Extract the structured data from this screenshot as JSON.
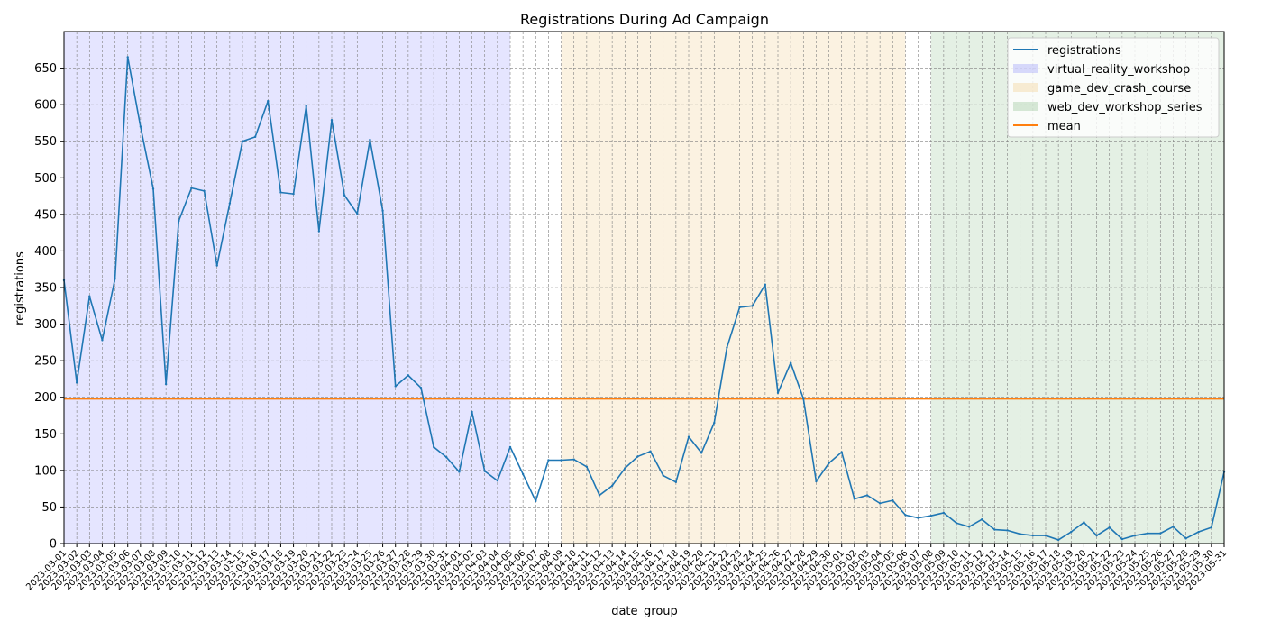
{
  "chart_data": {
    "type": "line",
    "title": "Registrations During Ad Campaign",
    "xlabel": "date_group",
    "ylabel": "registrations",
    "ylim": [
      0,
      700
    ],
    "yticks": [
      0,
      50,
      100,
      150,
      200,
      250,
      300,
      350,
      400,
      450,
      500,
      550,
      600,
      650
    ],
    "grid": true,
    "legend_position": "top-right",
    "x": [
      "2023-03-01",
      "2023-03-02",
      "2023-03-03",
      "2023-03-04",
      "2023-03-05",
      "2023-03-06",
      "2023-03-07",
      "2023-03-08",
      "2023-03-09",
      "2023-03-10",
      "2023-03-11",
      "2023-03-12",
      "2023-03-13",
      "2023-03-14",
      "2023-03-15",
      "2023-03-16",
      "2023-03-17",
      "2023-03-18",
      "2023-03-19",
      "2023-03-20",
      "2023-03-21",
      "2023-03-22",
      "2023-03-23",
      "2023-03-24",
      "2023-03-25",
      "2023-03-26",
      "2023-03-27",
      "2023-03-28",
      "2023-03-29",
      "2023-03-30",
      "2023-03-31",
      "2023-04-01",
      "2023-04-02",
      "2023-04-03",
      "2023-04-04",
      "2023-04-05",
      "2023-04-06",
      "2023-04-07",
      "2023-04-08",
      "2023-04-09",
      "2023-04-10",
      "2023-04-11",
      "2023-04-12",
      "2023-04-13",
      "2023-04-14",
      "2023-04-15",
      "2023-04-16",
      "2023-04-17",
      "2023-04-18",
      "2023-04-19",
      "2023-04-20",
      "2023-04-21",
      "2023-04-22",
      "2023-04-23",
      "2023-04-24",
      "2023-04-25",
      "2023-04-26",
      "2023-04-27",
      "2023-04-28",
      "2023-04-29",
      "2023-04-30",
      "2023-05-01",
      "2023-05-02",
      "2023-05-03",
      "2023-05-04",
      "2023-05-05",
      "2023-05-06",
      "2023-05-07",
      "2023-05-08",
      "2023-05-09",
      "2023-05-10",
      "2023-05-11",
      "2023-05-12",
      "2023-05-13",
      "2023-05-14",
      "2023-05-15",
      "2023-05-16",
      "2023-05-17",
      "2023-05-18",
      "2023-05-19",
      "2023-05-20",
      "2023-05-21",
      "2023-05-22",
      "2023-05-23",
      "2023-05-24",
      "2023-05-25",
      "2023-05-26",
      "2023-05-27",
      "2023-05-28",
      "2023-05-29",
      "2023-05-30",
      "2023-05-31"
    ],
    "series": [
      {
        "name": "registrations",
        "color": "#1f77b4",
        "values": [
          360,
          220,
          338,
          278,
          362,
          665,
          570,
          485,
          218,
          441,
          486,
          482,
          380,
          465,
          550,
          556,
          605,
          480,
          478,
          598,
          427,
          579,
          476,
          451,
          552,
          455,
          215,
          230,
          213,
          132,
          118,
          98,
          180,
          99,
          86,
          132,
          95,
          58,
          114,
          114,
          115,
          105,
          66,
          79,
          103,
          119,
          126,
          93,
          84,
          146,
          124,
          165,
          268,
          323,
          325,
          354,
          206,
          247,
          198,
          85,
          110,
          125,
          61,
          66,
          55,
          59,
          39,
          35,
          38,
          42,
          28,
          23,
          33,
          19,
          18,
          13,
          11,
          11,
          5,
          16,
          29,
          11,
          22,
          6,
          11,
          14,
          14,
          23,
          7,
          16,
          22,
          98
        ]
      }
    ],
    "mean": {
      "name": "mean",
      "value": 198,
      "color": "#ff7f0e"
    },
    "campaign_spans": [
      {
        "name": "virtual_reality_workshop",
        "start": "2023-03-01",
        "end": "2023-04-05",
        "color": "#0000ff",
        "opacity": 0.1
      },
      {
        "name": "game_dev_crash_course",
        "start": "2023-04-09",
        "end": "2023-05-06",
        "color": "#f5deb3",
        "opacity": 0.4
      },
      {
        "name": "web_dev_workshop_series",
        "start": "2023-05-08",
        "end": "2023-05-31",
        "color": "#2e8b2e",
        "opacity": 0.13
      }
    ]
  }
}
